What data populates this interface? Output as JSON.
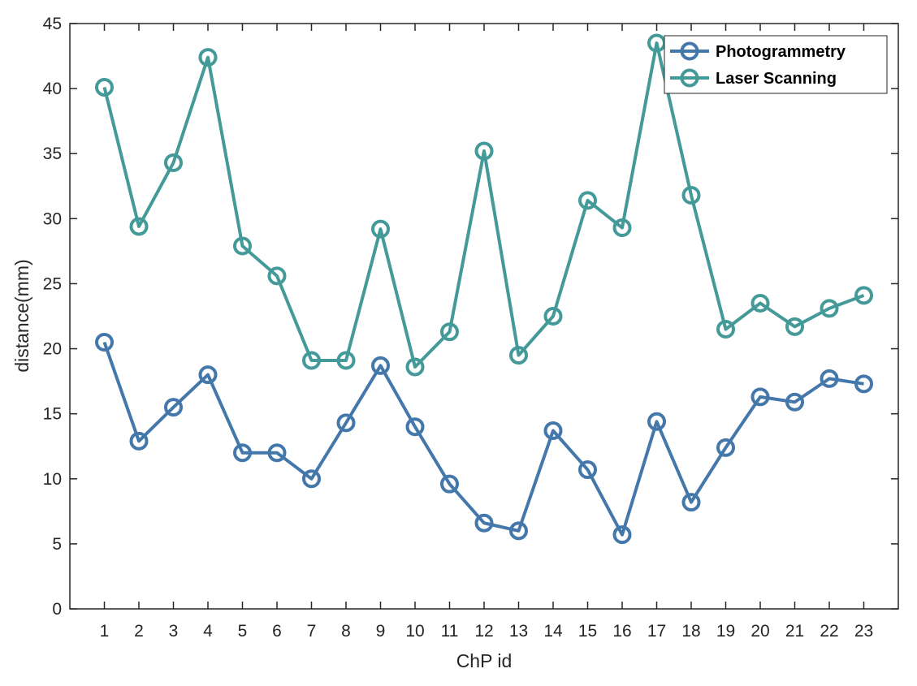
{
  "chart_data": {
    "type": "line",
    "xlabel": "ChP id",
    "ylabel": "distance(mm)",
    "x": [
      1,
      2,
      3,
      4,
      5,
      6,
      7,
      8,
      9,
      10,
      11,
      12,
      13,
      14,
      15,
      16,
      17,
      18,
      19,
      20,
      21,
      22,
      23
    ],
    "xticks": [
      "1",
      "2",
      "3",
      "4",
      "5",
      "6",
      "7",
      "8",
      "9",
      "10",
      "11",
      "12",
      "13",
      "14",
      "15",
      "16",
      "17",
      "18",
      "19",
      "20",
      "21",
      "22",
      "23"
    ],
    "xlim": [
      0,
      24
    ],
    "ylim": [
      0,
      45
    ],
    "yticks": [
      "0",
      "5",
      "10",
      "15",
      "20",
      "25",
      "30",
      "35",
      "40",
      "45"
    ],
    "grid": false,
    "legend_position": "top-right",
    "series": [
      {
        "name": "Photogrammetry",
        "color": "#4477aa",
        "marker": "circle",
        "values": [
          20.5,
          12.9,
          15.5,
          18.0,
          12.0,
          12.0,
          10.0,
          14.3,
          18.7,
          14.0,
          9.6,
          6.6,
          6.0,
          13.7,
          10.7,
          5.7,
          14.4,
          8.2,
          12.4,
          16.3,
          15.9,
          17.7,
          17.3
        ]
      },
      {
        "name": "Laser Scanning",
        "color": "#449999",
        "marker": "circle",
        "values": [
          40.1,
          29.4,
          34.3,
          42.4,
          27.9,
          25.6,
          19.1,
          19.1,
          29.2,
          18.6,
          21.3,
          35.2,
          19.5,
          22.5,
          31.4,
          29.3,
          43.5,
          31.8,
          21.5,
          23.5,
          21.7,
          23.1,
          24.1
        ]
      }
    ]
  }
}
